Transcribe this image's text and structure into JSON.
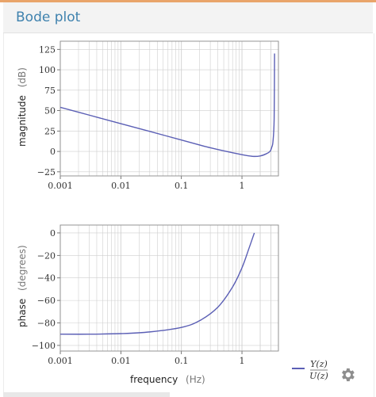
{
  "header": {
    "title": "Bode plot"
  },
  "colors": {
    "curve": "#5b5fb5",
    "grid": "#cfcfcf",
    "header_title": "#3f82ae",
    "accent_bar": "#e9a46a"
  },
  "chart_data": [
    {
      "type": "line",
      "xscale": "log",
      "xlim": [
        0.001,
        4
      ],
      "ylim": [
        -30,
        135
      ],
      "xticks": [
        "0.001",
        "0.01",
        "0.1",
        "1"
      ],
      "yticks": [
        "125",
        "100",
        "75",
        "50",
        "25",
        "0",
        "−25"
      ],
      "ylabel": "magnitude",
      "yunit": "(dB)",
      "xlabel": "",
      "grid": true,
      "series": [
        {
          "x": [
            0.001,
            0.003,
            0.01,
            0.03,
            0.1,
            0.3,
            1,
            1.5,
            2,
            2.5,
            2.9,
            3.1,
            3.25,
            3.4,
            3.45
          ],
          "y": [
            54,
            44.5,
            34,
            24.5,
            14,
            4.5,
            -4,
            -6,
            -5.5,
            -3,
            0,
            5,
            12,
            40,
            120
          ]
        }
      ]
    },
    {
      "type": "line",
      "xscale": "log",
      "xlim": [
        0.001,
        4
      ],
      "ylim": [
        -105,
        7
      ],
      "xticks": [
        "0.001",
        "0.01",
        "0.1",
        "1"
      ],
      "yticks": [
        "0",
        "−20",
        "−40",
        "−60",
        "−80",
        "−100"
      ],
      "ylabel": "phase",
      "yunit": "(degrees)",
      "xlabel": "frequency",
      "xunit": "(Hz)",
      "grid": true,
      "series": [
        {
          "x": [
            0.001,
            0.003,
            0.01,
            0.03,
            0.1,
            0.2,
            0.4,
            0.7,
            1,
            1.3,
            1.6
          ],
          "y": [
            -90,
            -90,
            -89.5,
            -88,
            -84,
            -78,
            -66,
            -48,
            -31,
            -14,
            0
          ]
        }
      ]
    }
  ],
  "legend": {
    "numerator": "Y(z)",
    "denominator": "U(z)"
  },
  "icons": {
    "settings": "gear-icon"
  }
}
